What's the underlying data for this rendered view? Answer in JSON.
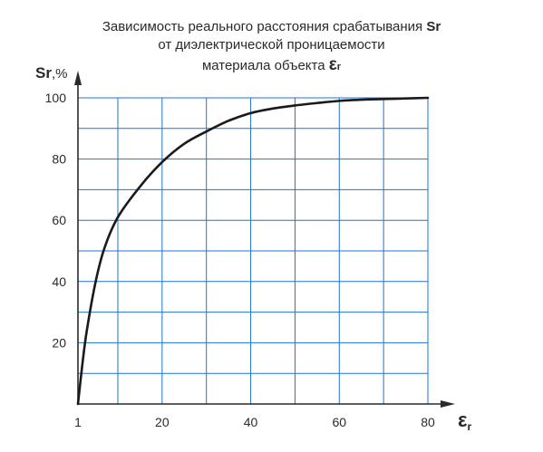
{
  "chart_data": {
    "type": "line",
    "title": {
      "line1": "Зависимость реального расстояния срабатывания",
      "line1_symbol": "Sr",
      "line2": "от диэлектрической проницаемости",
      "line3": "материала объекта",
      "line3_symbol": "ε",
      "line3_symbol_sub": "r"
    },
    "ylabel": {
      "symbol": "Sr",
      "unit": ",%"
    },
    "xlabel": {
      "symbol": "ε",
      "sub": "r"
    },
    "xlim": [
      1,
      80
    ],
    "ylim": [
      0,
      100
    ],
    "x_grid_step": 10,
    "y_grid_step": 10,
    "xticks": [
      1,
      20,
      40,
      60,
      80
    ],
    "yticks": [
      20,
      40,
      60,
      80,
      100
    ],
    "grid": true,
    "colors": {
      "grid": "#1e73d2",
      "curve": "#1a1a1a",
      "axes": "#2a2a2a"
    },
    "series": [
      {
        "x": [
          1,
          2,
          3,
          5,
          7,
          10,
          15,
          20,
          25,
          30,
          35,
          40,
          45,
          50,
          55,
          60,
          65,
          70,
          75,
          80
        ],
        "values": [
          0,
          13,
          24,
          40,
          51,
          61,
          71,
          79,
          85,
          89,
          92.5,
          95,
          96.5,
          97.5,
          98.3,
          99,
          99.4,
          99.6,
          99.8,
          100
        ]
      }
    ]
  }
}
